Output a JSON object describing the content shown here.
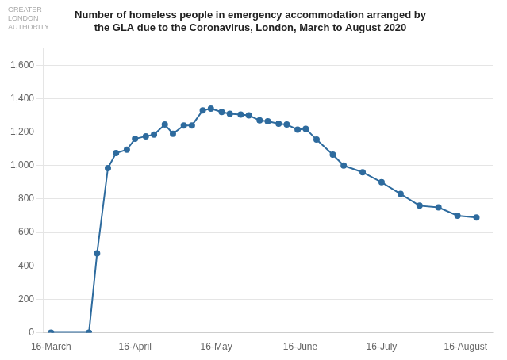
{
  "chart_data": {
    "type": "line",
    "title": [
      "Number of homeless people in emergency accommodation arranged by",
      "the GLA due to the Coronavirus, London, March to August 2020"
    ],
    "annotations": [
      {
        "text": "GREATER\nLONDON\nAUTHORITY",
        "color": "#aaaaaa"
      }
    ],
    "x": [
      0,
      14,
      17,
      21,
      24,
      28,
      31,
      35,
      38,
      42,
      45,
      49,
      52,
      56,
      59,
      63,
      66,
      70,
      73,
      77,
      80,
      84,
      87,
      91,
      94,
      98,
      104,
      108,
      115,
      122,
      129,
      136,
      143,
      150,
      157
    ],
    "values": [
      0,
      0,
      475,
      985,
      1075,
      1095,
      1160,
      1175,
      1185,
      1245,
      1190,
      1240,
      1240,
      1330,
      1340,
      1320,
      1310,
      1305,
      1300,
      1270,
      1265,
      1250,
      1245,
      1215,
      1220,
      1155,
      1065,
      1000,
      960,
      900,
      830,
      760,
      750,
      700,
      690
    ],
    "color": "#2E6B9E",
    "marker": "circle",
    "xlim": [
      -3,
      163
    ],
    "xticks": [
      {
        "value": 0,
        "label": "16-March"
      },
      {
        "value": 31,
        "label": "16-April"
      },
      {
        "value": 61,
        "label": "16-May"
      },
      {
        "value": 92,
        "label": "16-June"
      },
      {
        "value": 122,
        "label": "16-July"
      },
      {
        "value": 153,
        "label": "16-August"
      }
    ],
    "ylim": [
      0,
      1700
    ],
    "yticks": [
      0,
      200,
      400,
      600,
      800,
      {
        "value": 1000,
        "label": "1,000"
      },
      {
        "value": 1200,
        "label": "1,200"
      },
      {
        "value": 1400,
        "label": "1,400"
      },
      {
        "value": 1600,
        "label": "1,600"
      }
    ],
    "grid": "y"
  }
}
